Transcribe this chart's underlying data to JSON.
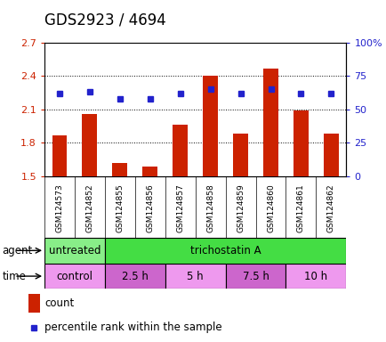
{
  "title": "GDS2923 / 4694",
  "samples": [
    "GSM124573",
    "GSM124852",
    "GSM124855",
    "GSM124856",
    "GSM124857",
    "GSM124858",
    "GSM124859",
    "GSM124860",
    "GSM124861",
    "GSM124862"
  ],
  "count_values": [
    1.87,
    2.06,
    1.62,
    1.59,
    1.96,
    2.4,
    1.88,
    2.47,
    2.09,
    1.88
  ],
  "percentile_values": [
    62,
    63,
    58,
    58,
    62,
    65,
    62,
    65,
    62,
    62
  ],
  "ylim_left": [
    1.5,
    2.7
  ],
  "ylim_right": [
    0,
    100
  ],
  "yticks_left": [
    1.5,
    1.8,
    2.1,
    2.4,
    2.7
  ],
  "yticks_right": [
    0,
    25,
    50,
    75,
    100
  ],
  "ytick_labels_left": [
    "1.5",
    "1.8",
    "2.1",
    "2.4",
    "2.7"
  ],
  "ytick_labels_right": [
    "0",
    "25",
    "50",
    "75",
    "100%"
  ],
  "bar_color": "#cc2200",
  "dot_color": "#2222cc",
  "bar_baseline": 1.5,
  "agent_row": [
    {
      "label": "untreated",
      "start": 0,
      "end": 2,
      "color": "#88ee88"
    },
    {
      "label": "trichostatin A",
      "start": 2,
      "end": 10,
      "color": "#44dd44"
    }
  ],
  "time_row": [
    {
      "label": "control",
      "start": 0,
      "end": 2,
      "color": "#ee99ee"
    },
    {
      "label": "2.5 h",
      "start": 2,
      "end": 4,
      "color": "#cc66cc"
    },
    {
      "label": "5 h",
      "start": 4,
      "end": 6,
      "color": "#ee99ee"
    },
    {
      "label": "7.5 h",
      "start": 6,
      "end": 8,
      "color": "#cc66cc"
    },
    {
      "label": "10 h",
      "start": 8,
      "end": 10,
      "color": "#ee99ee"
    }
  ],
  "legend_count_label": "count",
  "legend_pct_label": "percentile rank within the sample",
  "agent_label": "agent",
  "time_label": "time",
  "tick_fontsize": 8,
  "label_fontsize": 8.5,
  "title_fontsize": 12,
  "sample_fontsize": 6.5,
  "xticklabel_bg": "#d0d0d0"
}
